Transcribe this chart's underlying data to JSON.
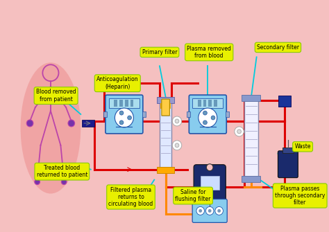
{
  "background_color": "#f5c0c0",
  "label_bg": "#e8f000",
  "label_bg_edge": "#88cc00",
  "labels": {
    "blood_removed": "Blood removed\nfrom patient",
    "anticoag": "Anticoagulation\n(Heparin)",
    "primary_filter": "Primary filter",
    "plasma_removed": "Plasma removed\nfrom blood",
    "secondary_filter": "Secondary filter",
    "treated_blood": "Treated blood\nreturned to patient",
    "filtered_plasma": "Filtered plasma\nreturns to\ncirculating blood",
    "saline": "Saline for\nflushing filter",
    "waste": "Waste",
    "plasma_passes": "Plasma passes\nthrough secondary\nfilter"
  },
  "red": "#dd0000",
  "cyan": "#00ccdd",
  "orange": "#ff8800",
  "darkblue": "#1a1a8c",
  "pink_ellipse": "#f0a0a0",
  "body_color": "#bb44aa",
  "pump_body": "#88ccee",
  "pump_edge": "#2255aa",
  "filter_body": "#e8eeff",
  "filter_cap": "#8899cc",
  "filter_cap2": "#9988cc"
}
